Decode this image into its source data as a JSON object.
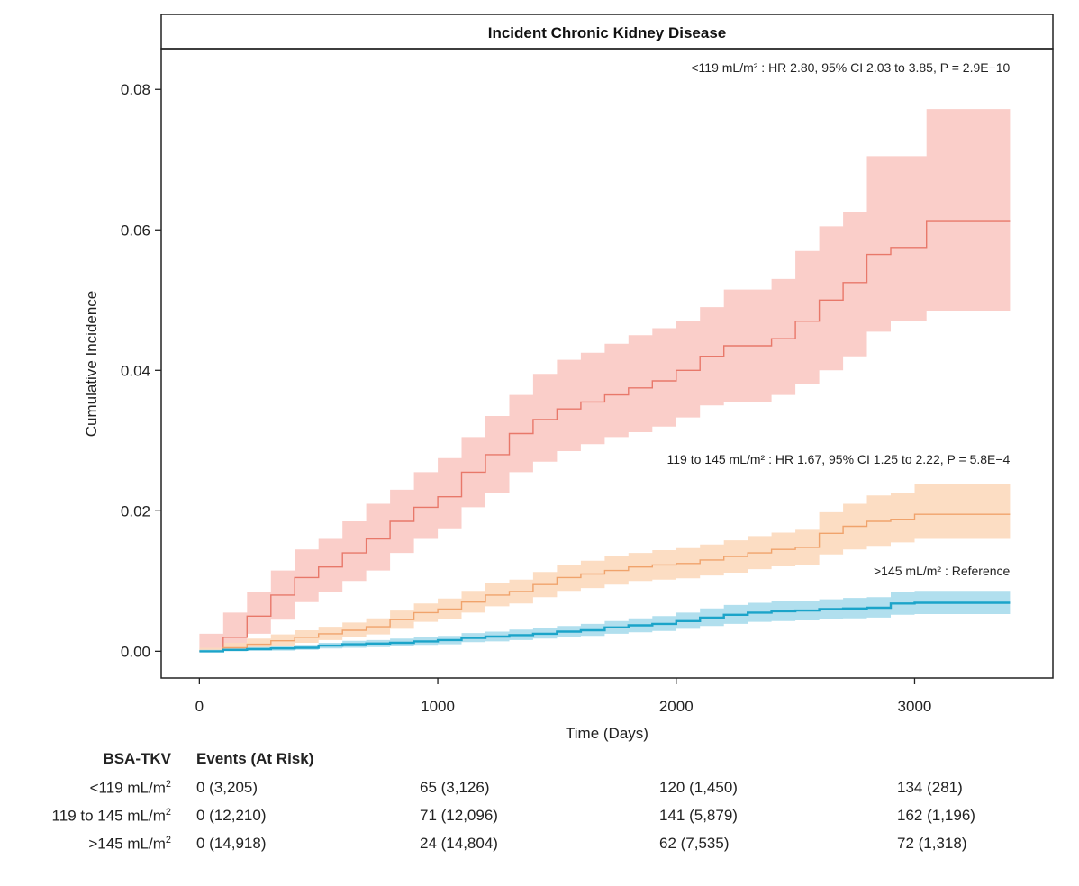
{
  "chart_data": {
    "type": "line",
    "subtype": "kaplan-meier cumulative incidence with confidence bands",
    "title": "Incident Chronic Kidney Disease",
    "xlabel": "Time (Days)",
    "ylabel": "Cumulative Incidence",
    "xlim": [
      -160,
      3580
    ],
    "ylim": [
      -0.0038,
      0.0858
    ],
    "xticks": [
      0,
      1000,
      2000,
      3000
    ],
    "xtick_labels": [
      "0",
      "1000",
      "2000",
      "3000"
    ],
    "yticks": [
      0,
      0.02,
      0.04,
      0.06,
      0.08
    ],
    "ytick_labels": [
      "0.00",
      "0.02",
      "0.04",
      "0.06",
      "0.08"
    ],
    "series": [
      {
        "name": "<119 mL/m²",
        "color": "#e8786a",
        "band_color": "#f9c9c3",
        "annotation": "<119 mL/m² : HR 2.80, 95% CI 2.03 to 3.85, P = 2.9E−10",
        "x": [
          0,
          100,
          200,
          300,
          400,
          500,
          600,
          700,
          800,
          900,
          1000,
          1100,
          1200,
          1300,
          1400,
          1500,
          1600,
          1700,
          1800,
          1900,
          2000,
          2100,
          2200,
          2300,
          2400,
          2500,
          2600,
          2700,
          2800,
          2900,
          3000,
          3050,
          3400
        ],
        "y": [
          0,
          0.002,
          0.005,
          0.008,
          0.0105,
          0.012,
          0.014,
          0.016,
          0.0185,
          0.0205,
          0.022,
          0.0255,
          0.028,
          0.031,
          0.033,
          0.0345,
          0.0355,
          0.0365,
          0.0375,
          0.0385,
          0.04,
          0.042,
          0.0435,
          0.0435,
          0.0445,
          0.047,
          0.05,
          0.0525,
          0.0565,
          0.0575,
          0.0575,
          0.0613,
          0.0613
        ],
        "lower": [
          0,
          0.0005,
          0.0025,
          0.0045,
          0.007,
          0.0085,
          0.01,
          0.0115,
          0.014,
          0.016,
          0.0175,
          0.0205,
          0.0225,
          0.0255,
          0.027,
          0.0285,
          0.0295,
          0.0305,
          0.0312,
          0.032,
          0.0333,
          0.035,
          0.0355,
          0.0355,
          0.0365,
          0.038,
          0.04,
          0.042,
          0.0455,
          0.047,
          0.047,
          0.0485,
          0.0485
        ],
        "upper": [
          0.0025,
          0.0055,
          0.0085,
          0.0115,
          0.0145,
          0.016,
          0.0185,
          0.021,
          0.023,
          0.0255,
          0.0275,
          0.0305,
          0.0335,
          0.0365,
          0.0395,
          0.0415,
          0.0425,
          0.0438,
          0.045,
          0.046,
          0.047,
          0.049,
          0.0515,
          0.0515,
          0.053,
          0.057,
          0.0605,
          0.0625,
          0.0705,
          0.0705,
          0.0705,
          0.0772,
          0.0772
        ]
      },
      {
        "name": "119 to 145 mL/m²",
        "color": "#f0a36c",
        "band_color": "#fcd9bd",
        "annotation": "119 to 145 mL/m² : HR 1.67, 95% CI 1.25 to 2.22, P = 5.8E−4",
        "x": [
          0,
          100,
          200,
          300,
          400,
          500,
          600,
          700,
          800,
          900,
          1000,
          1100,
          1200,
          1300,
          1400,
          1500,
          1600,
          1700,
          1800,
          1900,
          2000,
          2100,
          2200,
          2300,
          2400,
          2500,
          2600,
          2700,
          2800,
          2900,
          3000,
          3400
        ],
        "y": [
          0,
          0.0005,
          0.001,
          0.0015,
          0.002,
          0.0025,
          0.003,
          0.0035,
          0.0045,
          0.0055,
          0.006,
          0.007,
          0.008,
          0.0085,
          0.0095,
          0.0105,
          0.011,
          0.0115,
          0.012,
          0.0123,
          0.0125,
          0.013,
          0.0135,
          0.014,
          0.0145,
          0.0148,
          0.0168,
          0.0178,
          0.0185,
          0.0188,
          0.0195,
          0.0195
        ],
        "lower": [
          0,
          0.0001,
          0.0004,
          0.0008,
          0.0012,
          0.0016,
          0.002,
          0.0024,
          0.0032,
          0.0042,
          0.0046,
          0.0055,
          0.0064,
          0.0068,
          0.0077,
          0.0086,
          0.009,
          0.0095,
          0.01,
          0.0102,
          0.0104,
          0.0108,
          0.0112,
          0.0117,
          0.0121,
          0.0123,
          0.0138,
          0.0145,
          0.015,
          0.0155,
          0.016,
          0.016
        ],
        "upper": [
          0.0005,
          0.0012,
          0.0018,
          0.0024,
          0.003,
          0.0035,
          0.0041,
          0.0047,
          0.0058,
          0.0068,
          0.0075,
          0.0086,
          0.0097,
          0.0102,
          0.0113,
          0.0123,
          0.0129,
          0.0135,
          0.014,
          0.0144,
          0.0147,
          0.0152,
          0.0158,
          0.0164,
          0.0169,
          0.0173,
          0.0198,
          0.021,
          0.0222,
          0.0226,
          0.0238,
          0.0238
        ]
      },
      {
        "name": ">145 mL/m²",
        "color": "#1ba4c9",
        "band_color": "#a9dcec",
        "annotation": ">145 mL/m² : Reference",
        "x": [
          0,
          100,
          200,
          300,
          400,
          500,
          600,
          700,
          800,
          900,
          1000,
          1100,
          1200,
          1300,
          1400,
          1500,
          1600,
          1700,
          1800,
          1900,
          2000,
          2100,
          2200,
          2300,
          2400,
          2500,
          2600,
          2700,
          2800,
          2900,
          3000,
          3400
        ],
        "y": [
          0,
          0.0002,
          0.0003,
          0.0004,
          0.0005,
          0.0008,
          0.001,
          0.0011,
          0.0012,
          0.0014,
          0.0016,
          0.0019,
          0.0021,
          0.0023,
          0.0025,
          0.0028,
          0.003,
          0.0034,
          0.0037,
          0.0039,
          0.0043,
          0.0048,
          0.0052,
          0.0055,
          0.0057,
          0.0058,
          0.006,
          0.0061,
          0.0062,
          0.0068,
          0.0069,
          0.0069
        ],
        "lower": [
          0,
          0.0,
          0.0001,
          0.0001,
          0.0002,
          0.0004,
          0.0005,
          0.0006,
          0.0007,
          0.0009,
          0.001,
          0.0013,
          0.0014,
          0.0016,
          0.0018,
          0.002,
          0.0022,
          0.0025,
          0.0027,
          0.0029,
          0.0032,
          0.0036,
          0.0039,
          0.0042,
          0.0043,
          0.0044,
          0.0046,
          0.0047,
          0.0048,
          0.0052,
          0.0053,
          0.0053
        ],
        "upper": [
          0.0002,
          0.0004,
          0.0006,
          0.0007,
          0.0009,
          0.0012,
          0.0015,
          0.0016,
          0.0018,
          0.002,
          0.0022,
          0.0026,
          0.0028,
          0.0031,
          0.0033,
          0.0036,
          0.0039,
          0.0043,
          0.0047,
          0.005,
          0.0055,
          0.0061,
          0.0066,
          0.0069,
          0.0071,
          0.0072,
          0.0074,
          0.0076,
          0.0077,
          0.0085,
          0.0086,
          0.0086
        ]
      }
    ]
  },
  "risk_table": {
    "header_group": "BSA-TKV",
    "header_values": "Events (At Risk)",
    "rows": [
      {
        "label": "<119 mL/m",
        "sup": "2",
        "cells": [
          "0 (3,205)",
          "65 (3,126)",
          "120 (1,450)",
          "134 (281)"
        ]
      },
      {
        "label": "119 to 145 mL/m",
        "sup": "2",
        "cells": [
          "0 (12,210)",
          "71 (12,096)",
          "141 (5,879)",
          "162 (1,196)"
        ]
      },
      {
        "label": ">145 mL/m",
        "sup": "2",
        "cells": [
          "0 (14,918)",
          "24 (14,804)",
          "62 (7,535)",
          "72 (1,318)"
        ]
      }
    ]
  }
}
